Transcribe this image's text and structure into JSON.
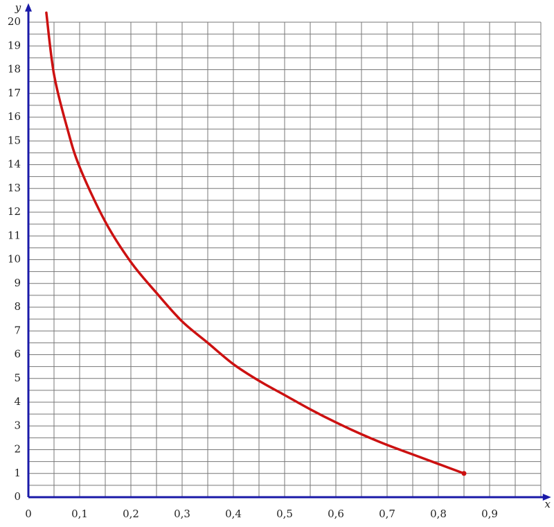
{
  "chart_data": {
    "type": "line",
    "x_label": "x",
    "y_label": "y",
    "x": [
      0.035,
      0.05,
      0.075,
      0.1,
      0.15,
      0.2,
      0.25,
      0.3,
      0.35,
      0.4,
      0.45,
      0.5,
      0.55,
      0.6,
      0.65,
      0.7,
      0.75,
      0.8,
      0.85
    ],
    "series": [
      {
        "color": "#cc1111",
        "values": [
          20.4,
          17.8,
          15.6,
          13.9,
          11.6,
          9.9,
          8.6,
          7.4,
          6.5,
          5.6,
          4.9,
          4.3,
          3.7,
          3.15,
          2.65,
          2.2,
          1.8,
          1.4,
          1.0
        ]
      }
    ],
    "xlim": [
      0,
      1.02
    ],
    "ylim": [
      0,
      20.8
    ],
    "xticks": [
      0,
      {
        "value": 0.1,
        "label": "0,1"
      },
      {
        "value": 0.2,
        "label": "0,2"
      },
      {
        "value": 0.3,
        "label": "0,3"
      },
      {
        "value": 0.4,
        "label": "0,4"
      },
      {
        "value": 0.5,
        "label": "0,5"
      },
      {
        "value": 0.6,
        "label": "0,6"
      },
      {
        "value": 0.7,
        "label": "0,7"
      },
      {
        "value": 0.8,
        "label": "0,8"
      },
      {
        "value": 0.9,
        "label": "0,9"
      }
    ],
    "yticks": [
      0,
      1,
      2,
      3,
      4,
      5,
      6,
      7,
      8,
      9,
      10,
      11,
      12,
      13,
      14,
      15,
      16,
      17,
      18,
      19,
      20
    ],
    "grid": true,
    "axis_color": "#1a1aa8"
  }
}
